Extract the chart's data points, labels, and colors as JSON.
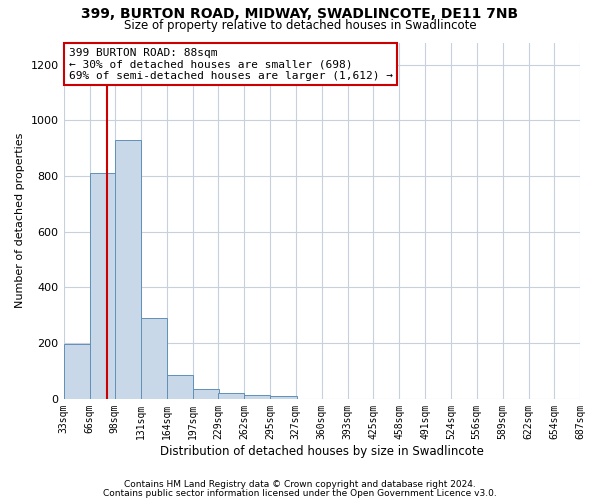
{
  "title": "399, BURTON ROAD, MIDWAY, SWADLINCOTE, DE11 7NB",
  "subtitle": "Size of property relative to detached houses in Swadlincote",
  "xlabel": "Distribution of detached houses by size in Swadlincote",
  "ylabel": "Number of detached properties",
  "footnote1": "Contains HM Land Registry data © Crown copyright and database right 2024.",
  "footnote2": "Contains public sector information licensed under the Open Government Licence v3.0.",
  "annotation_line1": "399 BURTON ROAD: 88sqm",
  "annotation_line2": "← 30% of detached houses are smaller (698)",
  "annotation_line3": "69% of semi-detached houses are larger (1,612) →",
  "bar_color": "#c8d8e8",
  "bar_edge_color": "#6090b8",
  "highlight_line_color": "#cc0000",
  "annotation_box_edge": "#cc0000",
  "background_color": "#ffffff",
  "grid_color": "#c8d0dc",
  "bin_edges": [
    33,
    66,
    98,
    131,
    164,
    197,
    229,
    262,
    295,
    327,
    360,
    393,
    425,
    458,
    491,
    524,
    556,
    589,
    622,
    654,
    687
  ],
  "bar_heights": [
    196,
    812,
    930,
    291,
    85,
    35,
    20,
    15,
    10,
    0,
    0,
    0,
    0,
    0,
    0,
    0,
    0,
    0,
    0,
    0
  ],
  "ylim": [
    0,
    1280
  ],
  "xlim": [
    33,
    687
  ],
  "property_size": 88,
  "yticks": [
    0,
    200,
    400,
    600,
    800,
    1000,
    1200
  ],
  "tick_labels": [
    "33sqm",
    "66sqm",
    "98sqm",
    "131sqm",
    "164sqm",
    "197sqm",
    "229sqm",
    "262sqm",
    "295sqm",
    "327sqm",
    "360sqm",
    "393sqm",
    "425sqm",
    "458sqm",
    "491sqm",
    "524sqm",
    "556sqm",
    "589sqm",
    "622sqm",
    "654sqm",
    "687sqm"
  ]
}
